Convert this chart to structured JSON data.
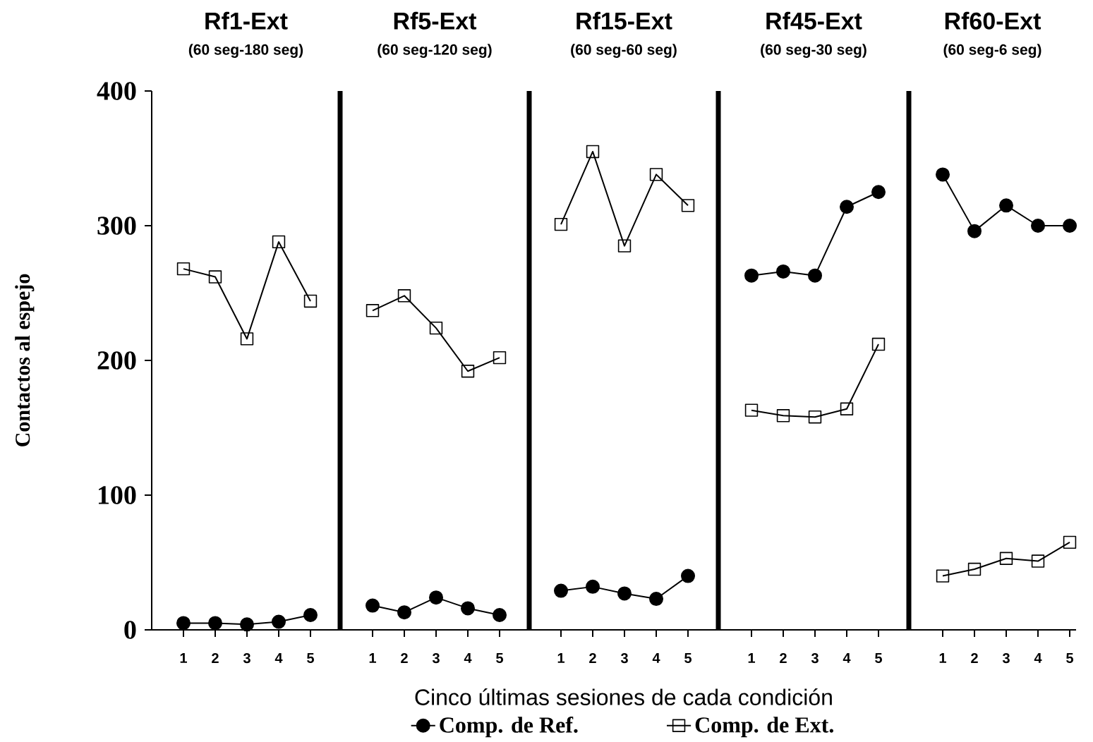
{
  "chart_data": [
    {
      "type": "line",
      "title": "Rf1-Ext",
      "subtitle": "(60 seg-180 seg)",
      "ylabel": "Contactos al espejo",
      "categories": [
        "1",
        "2",
        "3",
        "4",
        "5"
      ],
      "ylim": [
        0,
        400
      ],
      "yticks": [
        0,
        100,
        200,
        300,
        400
      ],
      "series": [
        {
          "color": "#000000",
          "marker": "circle",
          "values": [
            5,
            5,
            4,
            6,
            11
          ]
        },
        {
          "color": "#000000",
          "marker": "square",
          "values": [
            268,
            262,
            216,
            288,
            244
          ]
        }
      ]
    },
    {
      "type": "line",
      "title": "Rf5-Ext",
      "subtitle": "(60 seg-120 seg)",
      "categories": [
        "1",
        "2",
        "3",
        "4",
        "5"
      ],
      "ylim": [
        0,
        400
      ],
      "yticks": [
        0,
        100,
        200,
        300,
        400
      ],
      "tick_labels": "x",
      "series": [
        {
          "color": "#000000",
          "marker": "circle",
          "values": [
            18,
            13,
            24,
            16,
            11
          ]
        },
        {
          "color": "#000000",
          "marker": "square",
          "values": [
            237,
            248,
            224,
            192,
            202
          ]
        }
      ]
    },
    {
      "type": "line",
      "title": "Rf15-Ext",
      "subtitle": "(60 seg-60 seg)",
      "xlabel": "Cinco últimas sesiones de cada condición",
      "legend": "bottom",
      "categories": [
        "1",
        "2",
        "3",
        "4",
        "5"
      ],
      "ylim": [
        0,
        400
      ],
      "yticks": [
        0,
        100,
        200,
        300,
        400
      ],
      "tick_labels": "x",
      "series": [
        {
          "name": "Comp. de Ref.",
          "color": "#000000",
          "marker": "circle",
          "values": [
            29,
            32,
            27,
            23,
            40
          ]
        },
        {
          "name": "Comp. de Ext.",
          "color": "#000000",
          "marker": "square",
          "values": [
            301,
            355,
            285,
            338,
            315
          ]
        }
      ]
    },
    {
      "type": "line",
      "title": "Rf45-Ext",
      "subtitle": "(60 seg-30 seg)",
      "categories": [
        "1",
        "2",
        "3",
        "4",
        "5"
      ],
      "ylim": [
        0,
        400
      ],
      "yticks": [
        0,
        100,
        200,
        300,
        400
      ],
      "tick_labels": "x",
      "series": [
        {
          "color": "#000000",
          "marker": "circle",
          "values": [
            263,
            266,
            263,
            314,
            325
          ]
        },
        {
          "color": "#000000",
          "marker": "square",
          "values": [
            163,
            159,
            158,
            164,
            212
          ]
        }
      ]
    },
    {
      "type": "line",
      "title": "Rf60-Ext",
      "subtitle": "(60 seg-6 seg)",
      "categories": [
        "1",
        "2",
        "3",
        "4",
        "5"
      ],
      "ylim": [
        0,
        400
      ],
      "yticks": [
        0,
        100,
        200,
        300,
        400
      ],
      "tick_labels": "x",
      "series": [
        {
          "color": "#000000",
          "marker": "circle",
          "values": [
            338,
            296,
            315,
            300,
            300
          ]
        },
        {
          "color": "#000000",
          "marker": "square",
          "values": [
            40,
            45,
            53,
            51,
            65
          ]
        }
      ]
    }
  ]
}
